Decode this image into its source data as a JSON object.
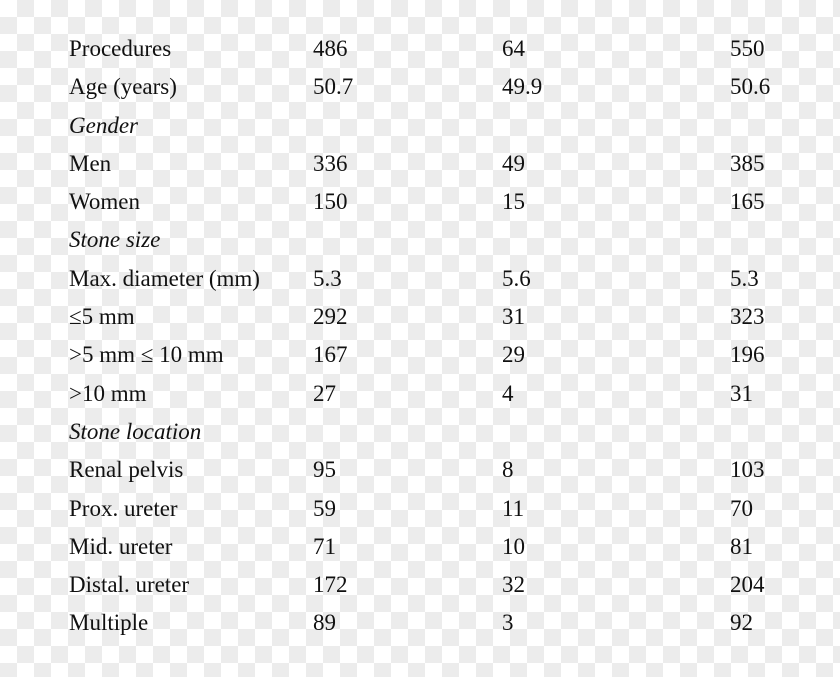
{
  "rows": [
    {
      "label": "Procedures",
      "values": [
        "486",
        "64",
        "550"
      ]
    },
    {
      "label": "Age (years)",
      "values": [
        "50.7",
        "49.9",
        "50.6"
      ]
    },
    {
      "label": "Gender",
      "section": true
    },
    {
      "label": "Men",
      "values": [
        "336",
        "49",
        "385"
      ]
    },
    {
      "label": "Women",
      "values": [
        "150",
        "15",
        "165"
      ]
    },
    {
      "label": "Stone size",
      "section": true
    },
    {
      "label": "Max. diameter (mm)",
      "values": [
        "5.3",
        "5.6",
        "5.3"
      ]
    },
    {
      "label": "≤5 mm",
      "values": [
        "292",
        "31",
        "323"
      ]
    },
    {
      "label": ">5 mm ≤ 10 mm",
      "values": [
        "167",
        "29",
        "196"
      ]
    },
    {
      "label": ">10 mm",
      "values": [
        "27",
        "4",
        "31"
      ]
    },
    {
      "label": "Stone location",
      "section": true
    },
    {
      "label": "Renal pelvis",
      "values": [
        "95",
        "8",
        "103"
      ]
    },
    {
      "label": "Prox. ureter",
      "values": [
        "59",
        "11",
        "70"
      ]
    },
    {
      "label": "Mid. ureter",
      "values": [
        "71",
        "10",
        "81"
      ]
    },
    {
      "label": "Distal. ureter",
      "values": [
        "172",
        "32",
        "204"
      ]
    },
    {
      "label": "Multiple",
      "values": [
        "89",
        "3",
        "92"
      ]
    }
  ]
}
